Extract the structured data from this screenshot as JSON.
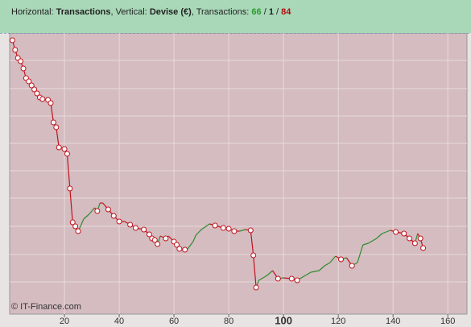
{
  "header": {
    "horizontal_label": "Horizontal:",
    "horizontal_value": "Transactions",
    "vertical_label": ", Vertical:",
    "vertical_value": "Devise (€)",
    "count_label": ", Transactions:",
    "counts": [
      66,
      1,
      84
    ],
    "separator": "/"
  },
  "footer": "© IT-Finance.com",
  "chart_data": {
    "type": "line",
    "x": [
      1,
      2,
      3,
      4,
      5,
      6,
      7,
      8,
      9,
      10,
      11,
      12,
      13,
      14,
      15,
      16,
      17,
      18,
      20,
      21,
      22,
      23,
      24,
      25,
      26,
      27,
      29,
      31,
      32,
      33,
      34,
      36,
      38,
      40,
      42,
      44,
      46,
      49,
      51,
      52,
      53,
      54,
      55,
      57,
      58,
      60,
      61,
      62,
      64,
      65,
      67,
      68,
      70,
      73,
      75,
      78,
      80,
      82,
      84,
      86,
      88,
      89,
      90,
      91,
      94,
      96,
      98,
      100,
      103,
      105,
      108,
      110,
      113,
      115,
      117,
      119,
      121,
      123,
      125,
      127,
      129,
      131,
      134,
      136,
      139,
      141,
      144,
      146,
      148,
      149,
      150,
      151
    ],
    "values": [
      340,
      328,
      318,
      314,
      305,
      293,
      289,
      284,
      279,
      274,
      269,
      267,
      267,
      266,
      262,
      238,
      232,
      207,
      205,
      199,
      156,
      114,
      109,
      103,
      110,
      118,
      124,
      132,
      128,
      138,
      138,
      130,
      122,
      115,
      115,
      111,
      107,
      105,
      99,
      94,
      92,
      87,
      97,
      94,
      97,
      90,
      86,
      81,
      80,
      81,
      90,
      98,
      105,
      112,
      110,
      107,
      106,
      103,
      103,
      105,
      104,
      73,
      33,
      42,
      48,
      54,
      44,
      45,
      44,
      42,
      48,
      52,
      54,
      60,
      64,
      72,
      68,
      70,
      60,
      64,
      86,
      88,
      94,
      100,
      104,
      102,
      100,
      94,
      88,
      100,
      94,
      82
    ],
    "up_color": "#2e8b2e",
    "down_color": "#c0141e",
    "xlim": [
      0,
      167
    ],
    "ylim": [
      0,
      349
    ],
    "xticks": [
      20,
      40,
      60,
      80,
      100,
      120,
      140,
      160
    ],
    "bold_xtick": 100
  }
}
